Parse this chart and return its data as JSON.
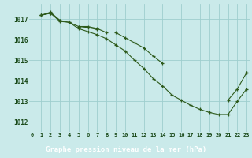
{
  "background_color": "#caeaea",
  "grid_color": "#9ecece",
  "line_color": "#2d5a1b",
  "marker_color": "#2d5a1b",
  "title": "Graphe pression niveau de la mer (hPa)",
  "label_bg": "#3a7a3a",
  "label_fg": "#ffffff",
  "tick_color": "#1a4a1a",
  "xlabel_hours": [
    0,
    1,
    2,
    3,
    4,
    5,
    6,
    7,
    8,
    9,
    10,
    11,
    12,
    13,
    14,
    15,
    16,
    17,
    18,
    19,
    20,
    21,
    22,
    23
  ],
  "yticks": [
    1012,
    1013,
    1014,
    1015,
    1016,
    1017
  ],
  "ylim": [
    1011.5,
    1017.75
  ],
  "xlim": [
    -0.3,
    23.3
  ],
  "series1": [
    null,
    1017.2,
    1017.3,
    1016.95,
    1016.85,
    1016.65,
    1016.6,
    1016.5,
    null,
    1016.35,
    1016.1,
    1015.85,
    1015.6,
    1015.2,
    1014.85,
    null,
    null,
    null,
    null,
    null,
    null,
    null,
    null,
    1014.4
  ],
  "series2": [
    null,
    1017.2,
    1017.3,
    1016.9,
    1016.85,
    1016.55,
    1016.4,
    1016.25,
    1016.05,
    1015.75,
    1015.45,
    1015.0,
    1014.6,
    1014.1,
    1013.75,
    1013.3,
    1013.05,
    1012.8,
    1012.6,
    1012.45,
    1012.35,
    1012.35,
    1013.0,
    1013.6
  ],
  "series3": [
    null,
    1017.2,
    1017.35,
    1016.95,
    null,
    1016.65,
    1016.65,
    1016.55,
    1016.35,
    null,
    null,
    null,
    null,
    null,
    null,
    null,
    null,
    null,
    null,
    null,
    null,
    1013.05,
    1013.6,
    1014.4
  ]
}
